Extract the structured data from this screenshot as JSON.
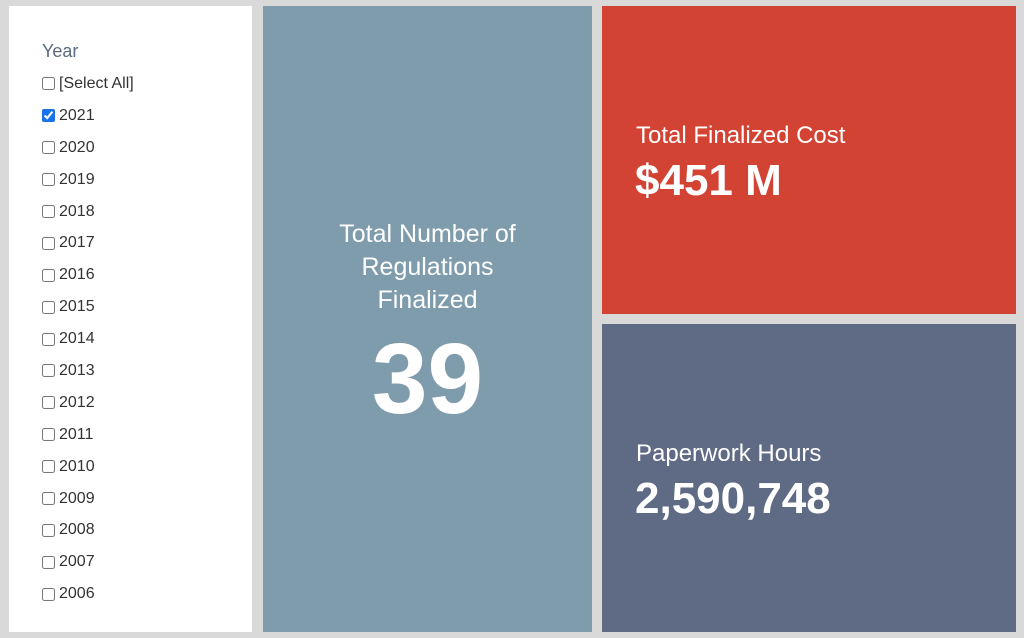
{
  "slicer": {
    "title": "Year",
    "items": [
      {
        "label": "[Select All]",
        "checked": false
      },
      {
        "label": "2021",
        "checked": true
      },
      {
        "label": "2020",
        "checked": false
      },
      {
        "label": "2019",
        "checked": false
      },
      {
        "label": "2018",
        "checked": false
      },
      {
        "label": "2017",
        "checked": false
      },
      {
        "label": "2016",
        "checked": false
      },
      {
        "label": "2015",
        "checked": false
      },
      {
        "label": "2014",
        "checked": false
      },
      {
        "label": "2013",
        "checked": false
      },
      {
        "label": "2012",
        "checked": false
      },
      {
        "label": "2011",
        "checked": false
      },
      {
        "label": "2010",
        "checked": false
      },
      {
        "label": "2009",
        "checked": false
      },
      {
        "label": "2008",
        "checked": false
      },
      {
        "label": "2007",
        "checked": false
      },
      {
        "label": "2006",
        "checked": false
      }
    ]
  },
  "kpis": {
    "regulations": {
      "label": "Total Number of Regulations Finalized",
      "value": "39",
      "color": "#7f9cad"
    },
    "cost": {
      "label": "Total Finalized Cost",
      "value": "$451 M",
      "color": "#d24333"
    },
    "hours": {
      "label": "Paperwork Hours",
      "value": "2,590,748",
      "color": "#5f6a85"
    }
  }
}
